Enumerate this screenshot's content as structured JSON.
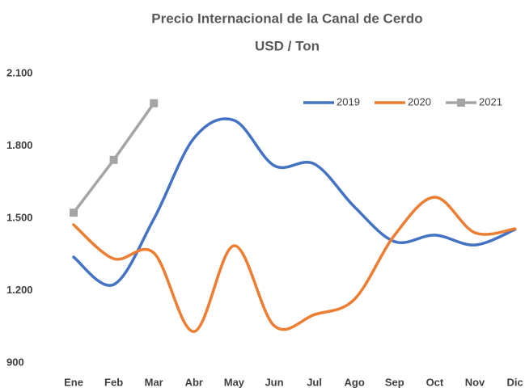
{
  "chart_data": {
    "type": "line",
    "title": "Precio Internacional de la Canal de Cerdo",
    "subtitle": "USD / Ton",
    "categories": [
      "Ene",
      "Feb",
      "Mar",
      "Abr",
      "May",
      "Jun",
      "Jul",
      "Ago",
      "Sep",
      "Oct",
      "Nov",
      "Dic"
    ],
    "series": [
      {
        "name": "2019",
        "color": "#4472c4",
        "smooth": true,
        "values": [
          1339,
          1225,
          1497,
          1832,
          1906,
          1718,
          1725,
          1547,
          1403,
          1430,
          1389,
          1453
        ]
      },
      {
        "name": "2020",
        "color": "#ed7d31",
        "smooth": true,
        "values": [
          1473,
          1332,
          1356,
          1030,
          1386,
          1054,
          1100,
          1164,
          1430,
          1587,
          1440,
          1456
        ]
      },
      {
        "name": "2021",
        "color": "#a5a5a5",
        "smooth": false,
        "marker": "square",
        "values": [
          1523,
          1742,
          1977,
          null,
          null,
          null,
          null,
          null,
          null,
          null,
          null,
          null
        ]
      }
    ],
    "ylim": [
      900,
      2100
    ],
    "yticks": [
      900,
      {
        "value": 1200,
        "label": "1.200"
      },
      {
        "value": 1500,
        "label": "1.500"
      },
      {
        "value": 1800,
        "label": "1.800"
      },
      {
        "value": 2100,
        "label": "2.100"
      }
    ],
    "grid": false,
    "legend": "upper right"
  }
}
